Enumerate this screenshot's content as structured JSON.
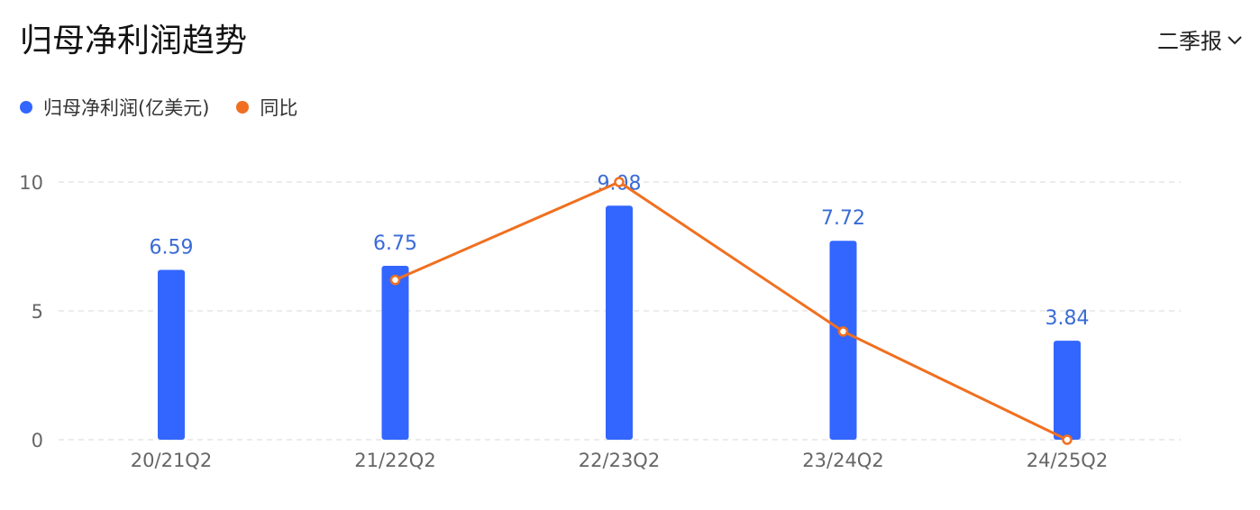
{
  "header": {
    "title": "归母净利润趋势",
    "period_label": "二季报",
    "dropdown_icon": "chevron-down-icon"
  },
  "colors": {
    "bar": "#3366ff",
    "line": "#f07020",
    "bar_label": "#3a6bd6",
    "axis_text": "#666666",
    "grid": "#e6e6e6"
  },
  "chart_data": {
    "type": "bar",
    "categories": [
      "20/21Q2",
      "21/22Q2",
      "22/23Q2",
      "23/24Q2",
      "24/25Q2"
    ],
    "ylim": [
      0,
      10
    ],
    "y_ticks": [
      "0",
      "5",
      "10"
    ],
    "grid": true,
    "legend": "top-left",
    "series": [
      {
        "name": "归母净利润(亿美元)",
        "type": "bar",
        "values": [
          6.59,
          6.75,
          9.08,
          7.72,
          3.84
        ],
        "labels": [
          "6.59",
          "6.75",
          "9.08",
          "7.72",
          "3.84"
        ]
      },
      {
        "name": "同比",
        "type": "line",
        "values": [
          null,
          6.2,
          10.0,
          4.2,
          0.0
        ]
      }
    ]
  }
}
